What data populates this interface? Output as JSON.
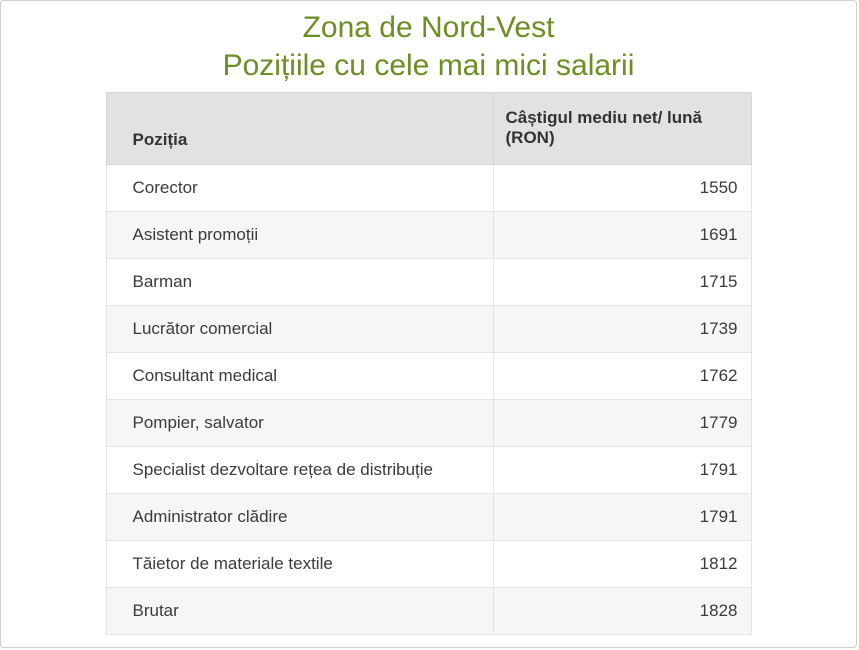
{
  "page": {
    "title_line1": "Zona de Nord-Vest",
    "title_line2": "Pozițiile cu cele mai mici salarii",
    "accent_color": "#6d8e22"
  },
  "table": {
    "columns": [
      "Poziția",
      "Câștigul mediu net/ lună (RON)"
    ],
    "rows": [
      [
        "Corector",
        1550
      ],
      [
        "Asistent promoții",
        1691
      ],
      [
        "Barman",
        1715
      ],
      [
        "Lucrător comercial",
        1739
      ],
      [
        "Consultant medical",
        1762
      ],
      [
        "Pompier, salvator",
        1779
      ],
      [
        "Specialist dezvoltare rețea de distribuție",
        1791
      ],
      [
        "Administrator clădire",
        1791
      ],
      [
        "Tăietor de materiale textile",
        1812
      ],
      [
        "Brutar",
        1828
      ]
    ]
  },
  "chart_data": {
    "type": "table",
    "title": "Zona de Nord-Vest — Pozițiile cu cele mai mici salarii",
    "columns": [
      "Poziția",
      "Câștigul mediu net/ lună (RON)"
    ],
    "rows": [
      {
        "pozitia": "Corector",
        "castig_mediu_net_luna_ron": 1550
      },
      {
        "pozitia": "Asistent promoții",
        "castig_mediu_net_luna_ron": 1691
      },
      {
        "pozitia": "Barman",
        "castig_mediu_net_luna_ron": 1715
      },
      {
        "pozitia": "Lucrător comercial",
        "castig_mediu_net_luna_ron": 1739
      },
      {
        "pozitia": "Consultant medical",
        "castig_mediu_net_luna_ron": 1762
      },
      {
        "pozitia": "Pompier, salvator",
        "castig_mediu_net_luna_ron": 1779
      },
      {
        "pozitia": "Specialist dezvoltare rețea de distribuție",
        "castig_mediu_net_luna_ron": 1791
      },
      {
        "pozitia": "Administrator clădire",
        "castig_mediu_net_luna_ron": 1791
      },
      {
        "pozitia": "Tăietor de materiale textile",
        "castig_mediu_net_luna_ron": 1812
      },
      {
        "pozitia": "Brutar",
        "castig_mediu_net_luna_ron": 1828
      }
    ]
  }
}
